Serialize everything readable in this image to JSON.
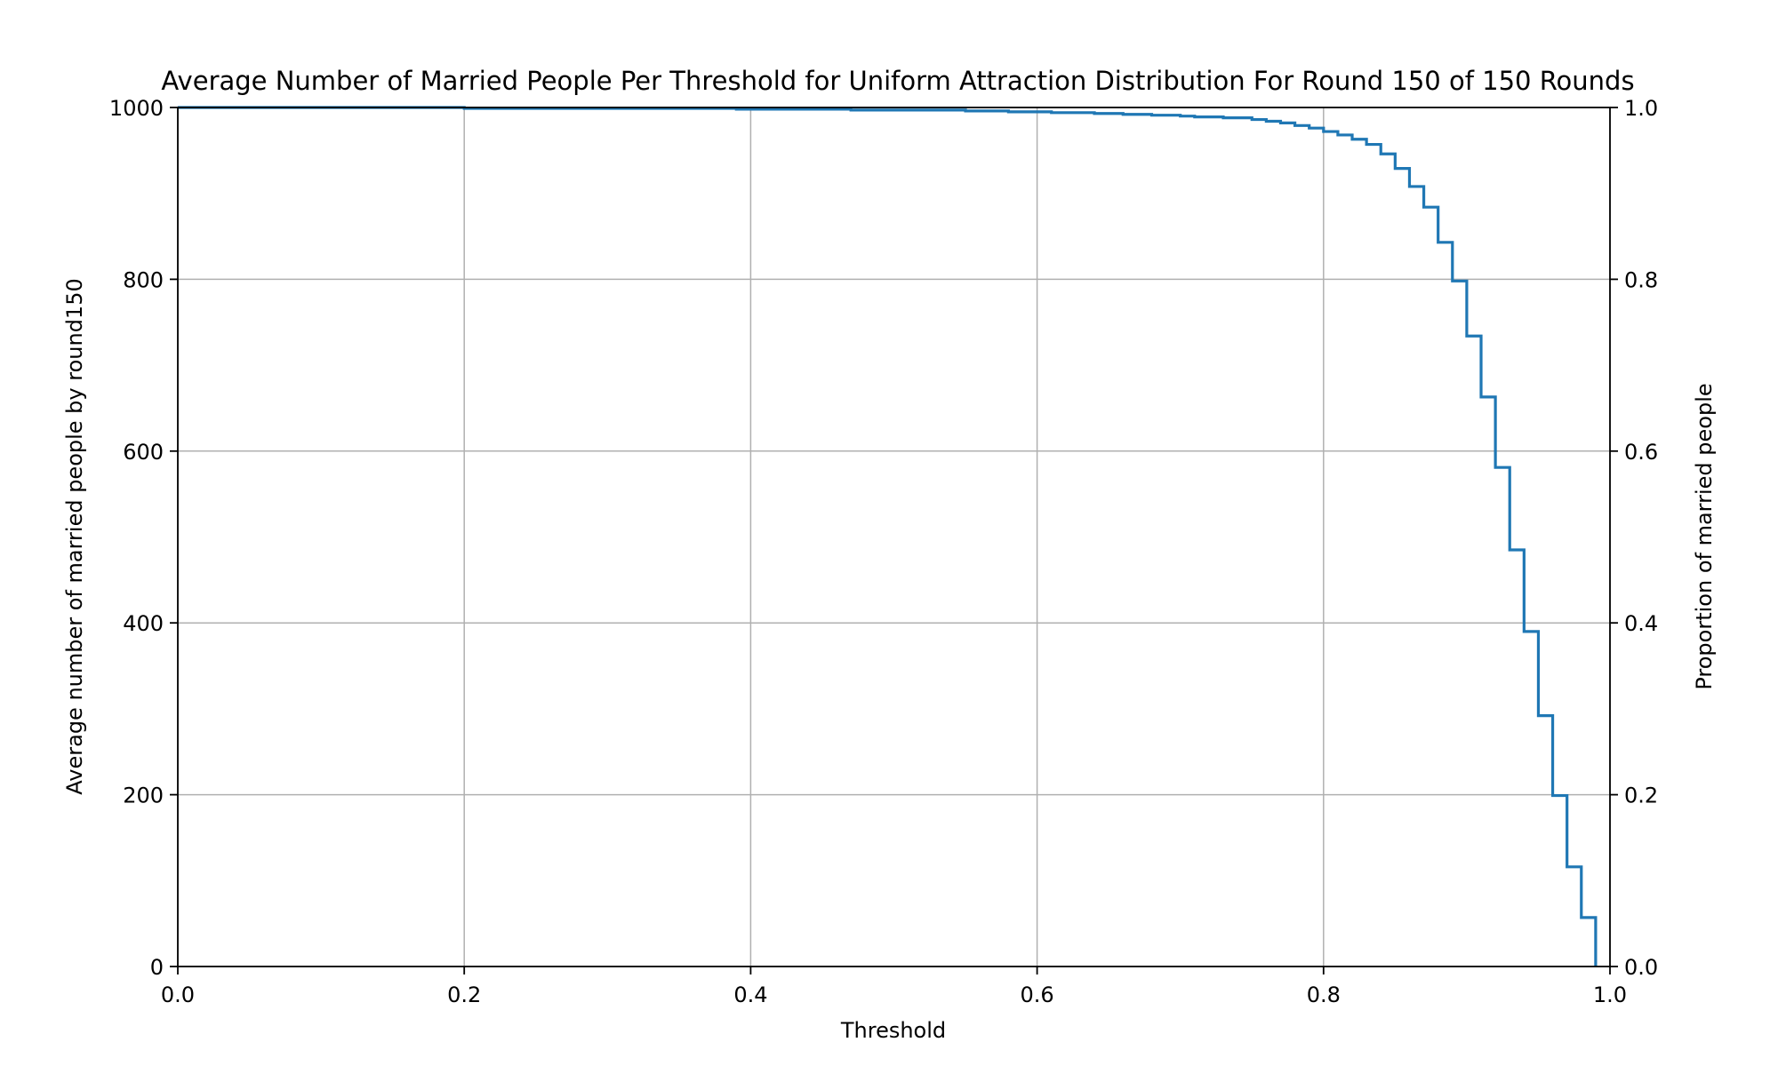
{
  "chart_data": {
    "type": "line",
    "drawstyle": "steps-post",
    "title": "Average Number of Married People Per Threshold for Uniform Attraction Distribution For Round 150 of 150 Rounds",
    "xlabel": "Threshold",
    "ylabel": "Average number of married people by round150",
    "y2label": "Proportion of married people",
    "xlim": [
      0,
      1
    ],
    "ylim": [
      0,
      1000
    ],
    "y2lim": [
      0,
      1
    ],
    "grid": true,
    "x_ticks": [
      0.0,
      0.2,
      0.4,
      0.6,
      0.8,
      1.0
    ],
    "x_tick_labels": [
      "0.0",
      "0.2",
      "0.4",
      "0.6",
      "0.8",
      "1.0"
    ],
    "y_ticks": [
      0,
      200,
      400,
      600,
      800,
      1000
    ],
    "y_tick_labels": [
      "0",
      "200",
      "400",
      "600",
      "800",
      "1000"
    ],
    "y2_ticks": [
      0.0,
      0.2,
      0.4,
      0.6,
      0.8,
      1.0
    ],
    "y2_tick_labels": [
      "0.0",
      "0.2",
      "0.4",
      "0.6",
      "0.8",
      "1.0"
    ],
    "series": [
      {
        "color": "#1f77b4",
        "x": [
          0.0,
          0.1,
          0.2,
          0.3,
          0.39,
          0.47,
          0.49,
          0.55,
          0.58,
          0.61,
          0.64,
          0.66,
          0.68,
          0.7,
          0.71,
          0.73,
          0.75,
          0.76,
          0.77,
          0.78,
          0.79,
          0.8,
          0.81,
          0.82,
          0.83,
          0.84,
          0.85,
          0.86,
          0.87,
          0.88,
          0.89,
          0.9,
          0.91,
          0.92,
          0.93,
          0.94,
          0.95,
          0.96,
          0.97,
          0.98,
          0.99
        ],
        "y": [
          1000,
          1000,
          999,
          999,
          998,
          997,
          997,
          996,
          995,
          994,
          993,
          992,
          991,
          990,
          989,
          988,
          986,
          984,
          982,
          979,
          976,
          972,
          968,
          963,
          957,
          946,
          929,
          908,
          884,
          843,
          798,
          734,
          663,
          581,
          485,
          390,
          292,
          199,
          116,
          57,
          15
        ]
      }
    ]
  }
}
